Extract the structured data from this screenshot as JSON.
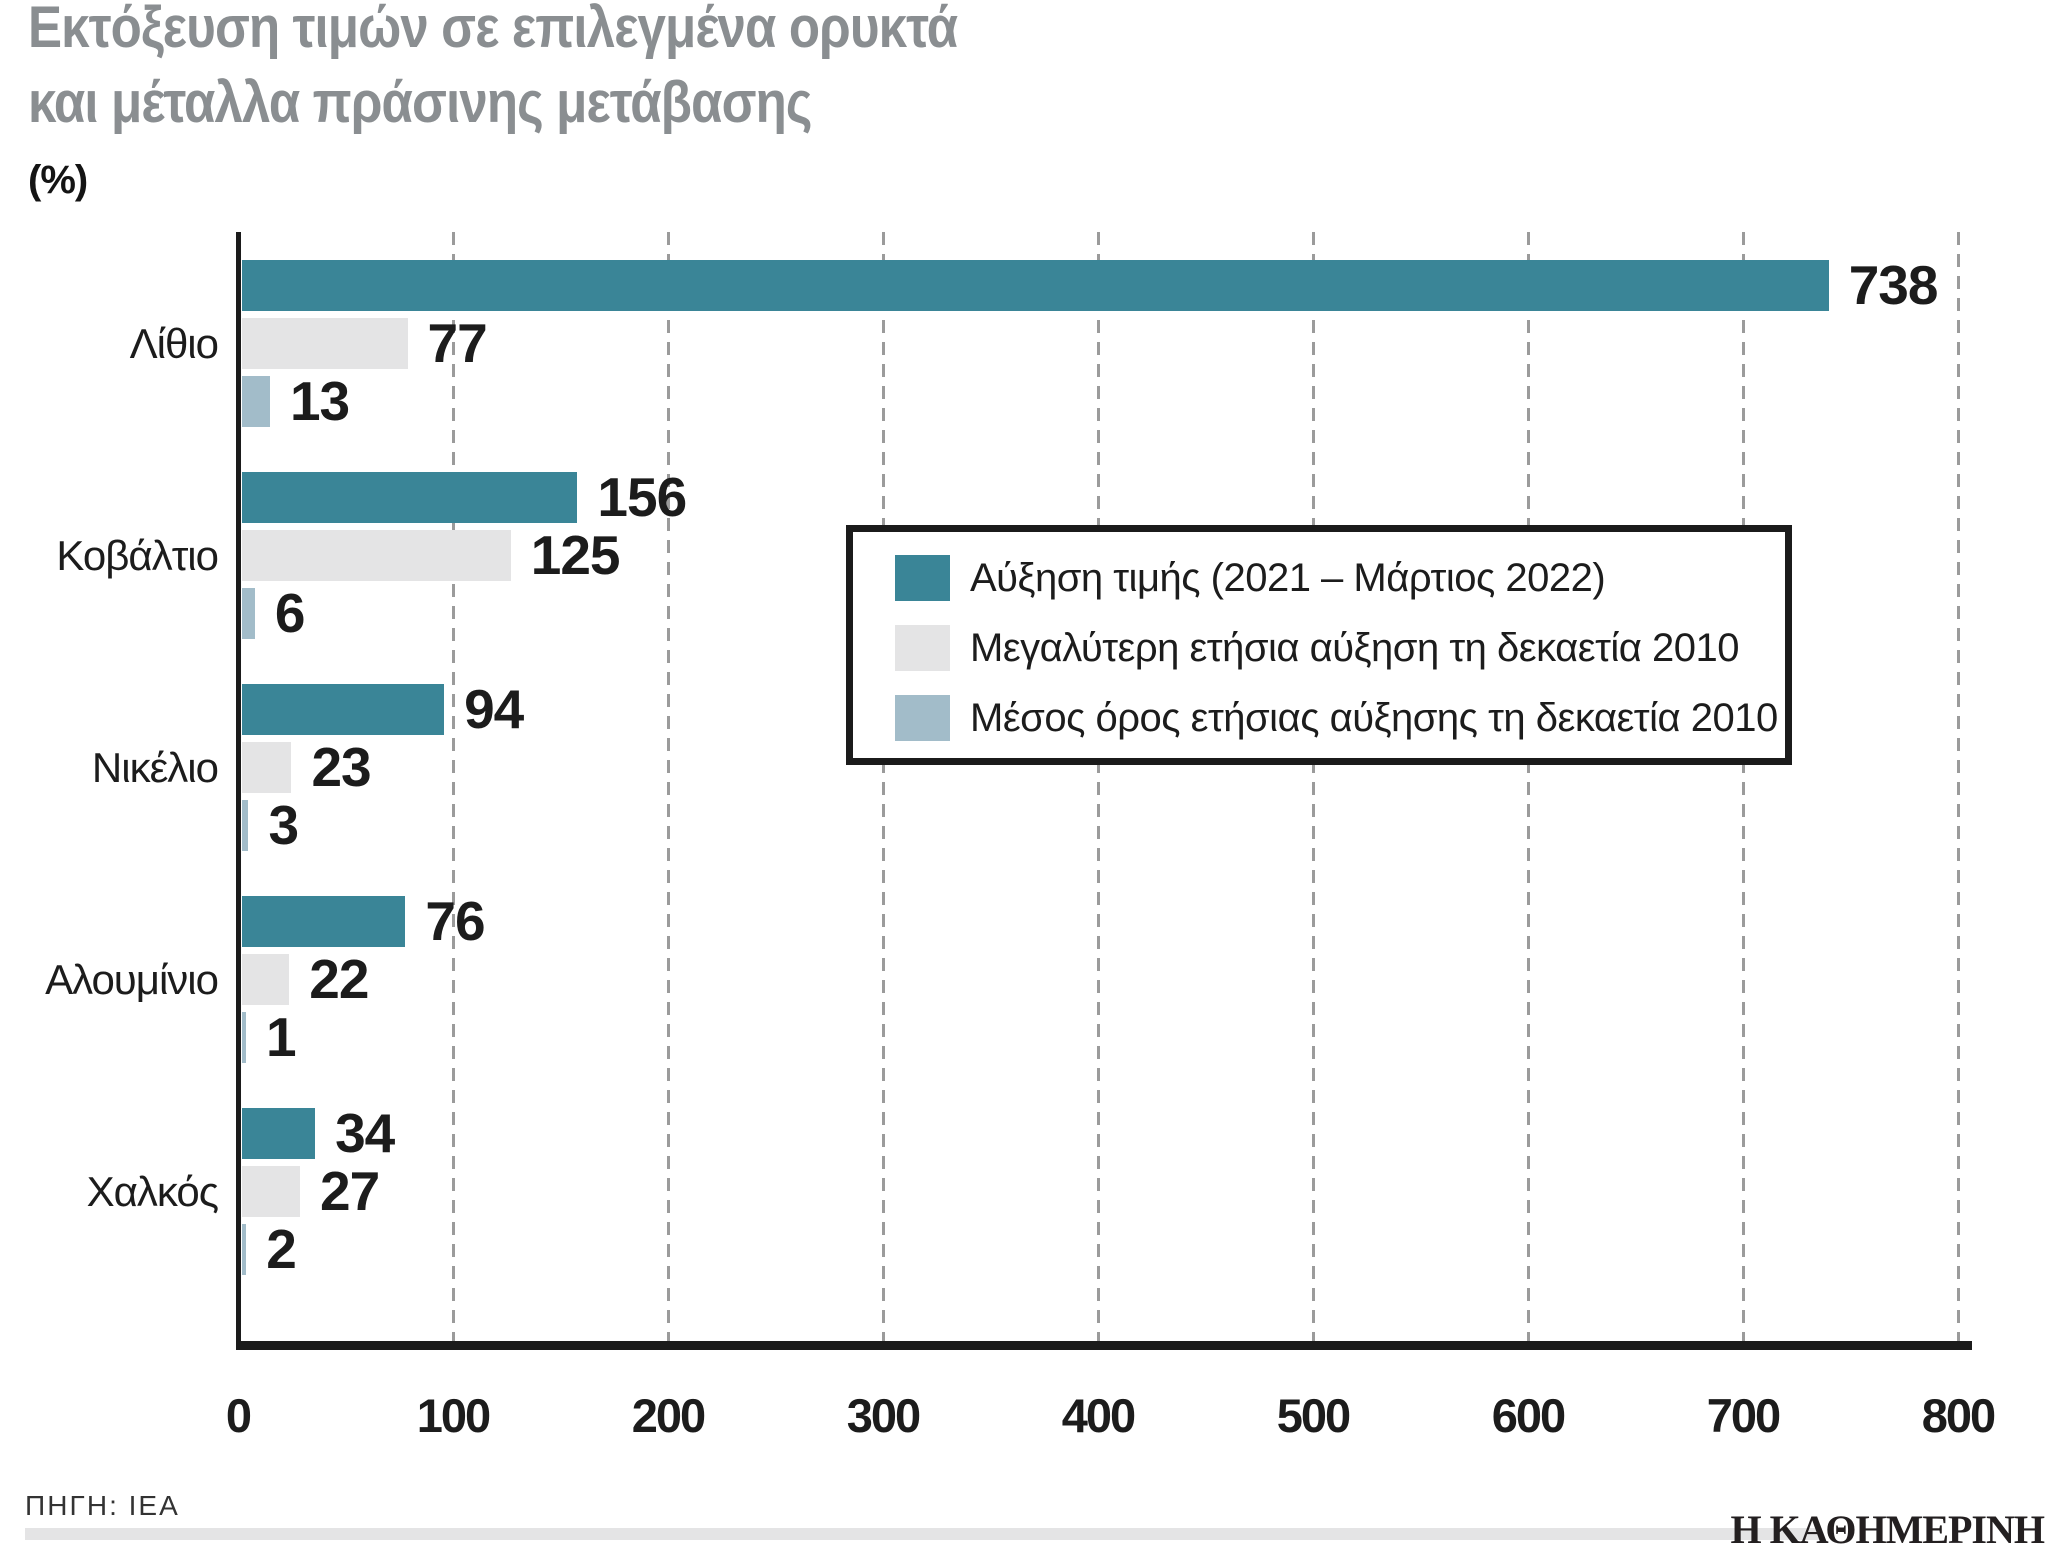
{
  "title": {
    "line1": "Εκτόξευση τιμών σε επιλεγμένα ορυκτά",
    "line2": "και μέταλλα πράσινης μετάβασης"
  },
  "unit_label": "(%)",
  "source": {
    "label": "ΠΗΓΗ: IEA"
  },
  "brand": {
    "logo_text": "Η ΚΑΘΗΜΕΡΙΝΗ"
  },
  "colors": {
    "series1": "#3A8597",
    "series2": "#E4E4E5",
    "series3": "#A2BCC9",
    "title_gray": "#8A8E91",
    "grid": "#9B9B9B",
    "axis": "#1B1B1B",
    "footer_strip": "#E4E4E5"
  },
  "chart_data": {
    "type": "bar",
    "orientation": "horizontal",
    "title": "Εκτόξευση τιμών σε επιλεγμένα ορυκτά και μέταλλα πράσινης μετάβασης",
    "unit": "%",
    "categories": [
      "Λίθιο",
      "Κοβάλτιο",
      "Νικέλιο",
      "Αλουμίνιο",
      "Χαλκός"
    ],
    "series": [
      {
        "name": "Αύξηση τιμής (2021 – Μάρτιος 2022)",
        "color": "#3A8597",
        "values": [
          738,
          156,
          94,
          76,
          34
        ]
      },
      {
        "name": "Μεγαλύτερη ετήσια αύξηση τη δεκαετία 2010",
        "color": "#E4E4E5",
        "values": [
          77,
          125,
          23,
          22,
          27
        ]
      },
      {
        "name": "Μέσος όρος ετήσιας αύξησης τη δεκαετία 2010",
        "color": "#A2BCC9",
        "values": [
          13,
          6,
          3,
          1,
          2
        ]
      }
    ],
    "x_axis": {
      "min": 0,
      "max": 800,
      "ticks": [
        0,
        100,
        200,
        300,
        400,
        500,
        600,
        700,
        800
      ]
    },
    "grid": "dashed-vertical",
    "legend_position": "inside-right",
    "source": "ΠΗΓΗ: IEA"
  }
}
